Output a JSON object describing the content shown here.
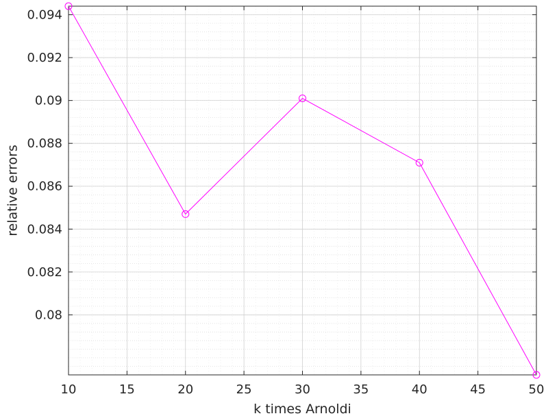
{
  "chart_data": {
    "type": "line",
    "xlabel": "k times Arnoldi",
    "ylabel": "relative errors",
    "xlim": [
      10,
      50
    ],
    "ylim": [
      0.0772,
      0.0944
    ],
    "x_ticks": [
      10,
      15,
      20,
      25,
      30,
      35,
      40,
      45,
      50
    ],
    "x_tick_labels": [
      "10",
      "15",
      "20",
      "25",
      "30",
      "35",
      "40",
      "45",
      "50"
    ],
    "y_ticks": [
      0.08,
      0.082,
      0.084,
      0.086,
      0.088,
      0.09,
      0.092,
      0.094
    ],
    "y_tick_labels": [
      "0.08",
      "0.082",
      "0.084",
      "0.086",
      "0.088",
      "0.09",
      "0.092",
      "0.094"
    ],
    "grid": true,
    "minor_grid": true,
    "series": [
      {
        "color": "#ff00ff",
        "marker": "circle",
        "x": [
          10,
          20,
          30,
          40,
          50
        ],
        "y": [
          0.0944,
          0.0847,
          0.0901,
          0.0871,
          0.0772
        ]
      }
    ]
  }
}
